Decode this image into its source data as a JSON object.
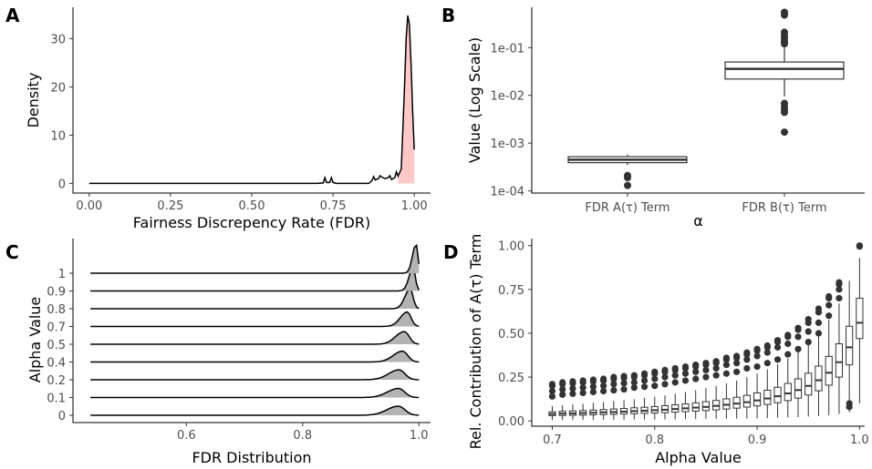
{
  "chart_data": [
    {
      "panel": "A",
      "type": "area",
      "xlabel": "Fairness Discrepency Rate (FDR)",
      "ylabel": "Density",
      "xlim": [
        0,
        1
      ],
      "ylim": [
        0,
        35
      ],
      "xticks": [
        0,
        0.25,
        0.5,
        0.75,
        1.0
      ],
      "xtick_labels": [
        "0.00",
        "0.25",
        "0.50",
        "0.75",
        "1.00"
      ],
      "yticks": [
        0,
        10,
        20,
        30
      ],
      "ytick_labels": [
        "0",
        "10",
        "20",
        "30"
      ],
      "fill_color": "#ffc8c8",
      "line_color": "#000000",
      "points": [
        [
          0.0,
          0
        ],
        [
          0.7,
          0
        ],
        [
          0.72,
          0.1
        ],
        [
          0.725,
          1.2
        ],
        [
          0.73,
          0.2
        ],
        [
          0.74,
          0.2
        ],
        [
          0.745,
          1.2
        ],
        [
          0.75,
          0.2
        ],
        [
          0.76,
          0
        ],
        [
          0.86,
          0
        ],
        [
          0.87,
          0.6
        ],
        [
          0.875,
          1.4
        ],
        [
          0.88,
          0.7
        ],
        [
          0.89,
          1.0
        ],
        [
          0.895,
          1.6
        ],
        [
          0.9,
          1.3
        ],
        [
          0.91,
          1.0
        ],
        [
          0.92,
          1.2
        ],
        [
          0.925,
          1.6
        ],
        [
          0.93,
          0.8
        ],
        [
          0.94,
          1.2
        ],
        [
          0.945,
          2.4
        ],
        [
          0.95,
          1.5
        ],
        [
          0.96,
          3.0
        ],
        [
          0.97,
          20
        ],
        [
          0.975,
          30
        ],
        [
          0.98,
          34.8
        ],
        [
          0.985,
          33
        ],
        [
          0.99,
          25
        ],
        [
          0.995,
          15
        ],
        [
          1.0,
          7
        ]
      ]
    },
    {
      "panel": "B",
      "type": "box",
      "xlabel": "α",
      "ylabel": "Value (Log Scale)",
      "yscale": "log",
      "ylim": [
        9e-05,
        0.7
      ],
      "yticks": [
        0.0001,
        0.001,
        0.01,
        0.1
      ],
      "ytick_labels": [
        "1e-04",
        "1e-03",
        "1e-02",
        "1e-01"
      ],
      "categories": [
        "FDR A(τ) Term",
        "FDR B(τ) Term"
      ],
      "boxes": [
        {
          "q1": 0.00039,
          "median": 0.00045,
          "q3": 0.00052,
          "whisker_low": 0.00035,
          "whisker_high": 0.00058,
          "outliers": [
            0.00021,
            0.00019,
            0.00013
          ]
        },
        {
          "q1": 0.022,
          "median": 0.036,
          "q3": 0.05,
          "whisker_low": 0.0095,
          "whisker_high": 0.1,
          "outliers": [
            0.55,
            0.48,
            0.21,
            0.18,
            0.16,
            0.14,
            0.13,
            0.12,
            0.0068,
            0.0058,
            0.005,
            0.0044,
            0.0017
          ]
        }
      ]
    },
    {
      "panel": "C",
      "type": "ridgeline",
      "xlabel": "FDR Distribution",
      "ylabel": "Alpha Value",
      "xlim": [
        0.4,
        1.02
      ],
      "xticks": [
        0.6,
        0.8,
        1.0
      ],
      "xtick_labels": [
        "0.6",
        "0.8",
        "1.0"
      ],
      "fill_color": "#b3b3b3",
      "line_color": "#000000",
      "ridges": [
        {
          "label": "0",
          "center": 0.965,
          "width": 0.02,
          "height": 10
        },
        {
          "label": "0.1",
          "center": 0.965,
          "width": 0.019,
          "height": 10
        },
        {
          "label": "0.2",
          "center": 0.966,
          "width": 0.018,
          "height": 11
        },
        {
          "label": "0.4",
          "center": 0.972,
          "width": 0.016,
          "height": 12
        },
        {
          "label": "0.5",
          "center": 0.975,
          "width": 0.015,
          "height": 14
        },
        {
          "label": "0.7",
          "center": 0.98,
          "width": 0.012,
          "height": 16
        },
        {
          "label": "0.8",
          "center": 0.985,
          "width": 0.009,
          "height": 22
        },
        {
          "label": "0.9",
          "center": 0.99,
          "width": 0.007,
          "height": 26
        },
        {
          "label": "1",
          "center": 0.995,
          "width": 0.006,
          "height": 32
        }
      ]
    },
    {
      "panel": "D",
      "type": "box",
      "xlabel": "Alpha Value",
      "ylabel": "Rel. Contribution of A(τ) Term",
      "xlim": [
        0.68,
        1.005
      ],
      "ylim": [
        -0.03,
        1.04
      ],
      "xticks": [
        0.7,
        0.8,
        0.9,
        1.0
      ],
      "xtick_labels": [
        "0.7",
        "0.8",
        "0.9",
        "1.0"
      ],
      "yticks": [
        0,
        0.25,
        0.5,
        0.75,
        1.0
      ],
      "ytick_labels": [
        "0.00",
        "0.25",
        "0.50",
        "0.75",
        "1.00"
      ],
      "x": [
        0.7,
        0.71,
        0.72,
        0.73,
        0.74,
        0.75,
        0.76,
        0.77,
        0.78,
        0.79,
        0.8,
        0.81,
        0.82,
        0.83,
        0.84,
        0.85,
        0.86,
        0.87,
        0.88,
        0.89,
        0.9,
        0.91,
        0.92,
        0.93,
        0.94,
        0.95,
        0.96,
        0.97,
        0.98,
        0.99,
        1.0
      ],
      "median": [
        0.04,
        0.042,
        0.043,
        0.045,
        0.047,
        0.049,
        0.051,
        0.053,
        0.056,
        0.058,
        0.061,
        0.064,
        0.068,
        0.072,
        0.076,
        0.08,
        0.086,
        0.092,
        0.099,
        0.107,
        0.117,
        0.128,
        0.141,
        0.157,
        0.176,
        0.2,
        0.232,
        0.275,
        0.335,
        0.42,
        0.56
      ],
      "q1": [
        0.03,
        0.031,
        0.032,
        0.033,
        0.035,
        0.036,
        0.038,
        0.039,
        0.041,
        0.043,
        0.045,
        0.047,
        0.05,
        0.053,
        0.056,
        0.059,
        0.063,
        0.068,
        0.073,
        0.079,
        0.086,
        0.094,
        0.104,
        0.116,
        0.13,
        0.148,
        0.172,
        0.204,
        0.25,
        0.32,
        0.47
      ],
      "q3": [
        0.052,
        0.055,
        0.057,
        0.059,
        0.062,
        0.065,
        0.068,
        0.071,
        0.075,
        0.078,
        0.082,
        0.087,
        0.092,
        0.097,
        0.103,
        0.11,
        0.117,
        0.126,
        0.135,
        0.146,
        0.16,
        0.175,
        0.192,
        0.214,
        0.24,
        0.272,
        0.313,
        0.368,
        0.44,
        0.54,
        0.7
      ],
      "whisker_low": [
        0.005,
        0.005,
        0.006,
        0.006,
        0.006,
        0.007,
        0.007,
        0.007,
        0.008,
        0.008,
        0.008,
        0.009,
        0.009,
        0.01,
        0.01,
        0.011,
        0.012,
        0.012,
        0.013,
        0.014,
        0.015,
        0.016,
        0.018,
        0.02,
        0.022,
        0.025,
        0.028,
        0.033,
        0.04,
        0.05,
        0.1
      ],
      "whisker_high": [
        0.085,
        0.09,
        0.094,
        0.098,
        0.103,
        0.108,
        0.113,
        0.118,
        0.124,
        0.131,
        0.138,
        0.146,
        0.155,
        0.164,
        0.175,
        0.187,
        0.2,
        0.214,
        0.23,
        0.249,
        0.27,
        0.295,
        0.324,
        0.358,
        0.398,
        0.446,
        0.505,
        0.578,
        0.67,
        0.8,
        0.93
      ],
      "outlier_top": [
        0.21,
        0.22,
        0.225,
        0.23,
        0.235,
        0.24,
        0.25,
        0.255,
        0.26,
        0.27,
        0.28,
        0.29,
        0.3,
        0.31,
        0.32,
        0.33,
        0.34,
        0.36,
        0.37,
        0.39,
        0.41,
        0.43,
        0.46,
        0.49,
        0.53,
        0.58,
        0.64,
        0.71,
        0.79,
        0.0,
        1.0
      ],
      "outlier_bands": [
        [
          0.14,
          0.17,
          0.2
        ],
        [
          0.15,
          0.18,
          0.21
        ],
        [
          0.155,
          0.185,
          0.215
        ],
        [
          0.16,
          0.19,
          0.22
        ],
        [
          0.165,
          0.195,
          0.225
        ],
        [
          0.17,
          0.2,
          0.23
        ],
        [
          0.175,
          0.21,
          0.24
        ],
        [
          0.18,
          0.215,
          0.245
        ],
        [
          0.19,
          0.22,
          0.25
        ],
        [
          0.195,
          0.23,
          0.26
        ],
        [
          0.2,
          0.24,
          0.27
        ],
        [
          0.21,
          0.25,
          0.28
        ],
        [
          0.22,
          0.26,
          0.29
        ],
        [
          0.23,
          0.27,
          0.3
        ],
        [
          0.24,
          0.28,
          0.31
        ],
        [
          0.25,
          0.29,
          0.32
        ],
        [
          0.26,
          0.3,
          0.33
        ],
        [
          0.27,
          0.32,
          0.35
        ],
        [
          0.28,
          0.33,
          0.36
        ],
        [
          0.3,
          0.35,
          0.38
        ],
        [
          0.31,
          0.37,
          0.4
        ],
        [
          0.33,
          0.39,
          0.42
        ],
        [
          0.35,
          0.42,
          0.45
        ],
        [
          0.38,
          0.44,
          0.48
        ],
        [
          0.41,
          0.48,
          0.52
        ],
        [
          0.45,
          0.51,
          0.56
        ],
        [
          0.5,
          0.56,
          0.62
        ],
        [
          0.6,
          0.66,
          0.7
        ],
        [
          0.7,
          0.75,
          0.78
        ],
        [
          0.08,
          0.1,
          0.1
        ],
        [
          1.0,
          1.0,
          1.0
        ]
      ]
    }
  ]
}
